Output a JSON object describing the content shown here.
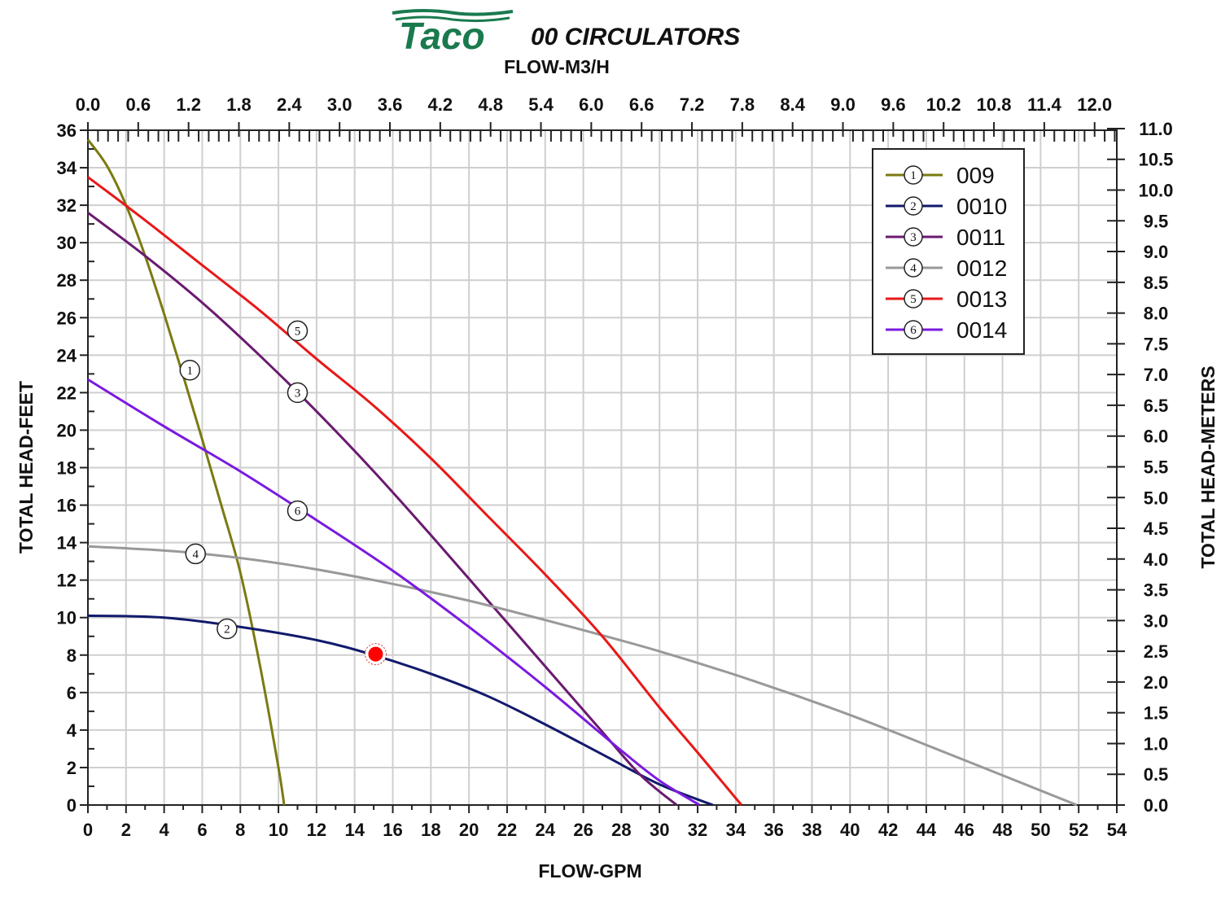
{
  "chart_data": {
    "type": "line",
    "title": "00 CIRCULATORS",
    "logo_text": "Taco",
    "xlabel": "FLOW-GPM",
    "x2label": "FLOW-M3/H",
    "ylabel": "TOTAL HEAD-FEET",
    "y2label": "TOTAL HEAD-METERS",
    "xlim": [
      0,
      54
    ],
    "ylim": [
      0,
      36
    ],
    "x2lim_m3h": [
      0,
      12.26
    ],
    "y2lim_m": [
      0,
      11
    ],
    "grid": true,
    "legend_position": "top-right",
    "x_ticks": [
      "0",
      "2",
      "4",
      "6",
      "8",
      "10",
      "12",
      "14",
      "16",
      "18",
      "20",
      "22",
      "24",
      "26",
      "28",
      "30",
      "32",
      "34",
      "36",
      "38",
      "40",
      "42",
      "44",
      "46",
      "48",
      "50",
      "52",
      "54"
    ],
    "y_ticks": [
      "0",
      "2",
      "4",
      "6",
      "8",
      "10",
      "12",
      "14",
      "16",
      "18",
      "20",
      "22",
      "24",
      "26",
      "28",
      "30",
      "32",
      "34",
      "36"
    ],
    "x2_ticks": [
      "0.0",
      "0.6",
      "1.2",
      "1.8",
      "2.4",
      "3.0",
      "3.6",
      "4.2",
      "4.8",
      "5.4",
      "6.0",
      "6.6",
      "7.2",
      "7.8",
      "8.4",
      "9.0",
      "9.6",
      "10.2",
      "10.8",
      "11.4",
      "12.0"
    ],
    "y2_ticks": [
      "0.0",
      "0.5",
      "1.0",
      "1.5",
      "2.0",
      "2.5",
      "3.0",
      "3.5",
      "4.0",
      "4.5",
      "5.0",
      "5.5",
      "6.0",
      "6.5",
      "7.0",
      "7.5",
      "8.0",
      "8.5",
      "9.0",
      "9.5",
      "10.0",
      "10.5",
      "11.0"
    ],
    "series": [
      {
        "id": "1",
        "name": "009",
        "color": "#7a7a12",
        "label_at": [
          5.35,
          23.2
        ],
        "x": [
          0,
          1,
          2,
          3,
          4,
          5,
          6,
          7,
          8,
          9,
          10,
          10.3
        ],
        "y": [
          35.5,
          34.1,
          32.0,
          29.3,
          26.2,
          22.9,
          19.5,
          16.0,
          12.4,
          7.6,
          2.0,
          0
        ]
      },
      {
        "id": "2",
        "name": "0010",
        "color": "#111a6b",
        "label_at": [
          7.3,
          9.4
        ],
        "x": [
          0,
          4,
          8,
          12,
          15,
          18,
          21,
          24,
          27,
          30,
          32.8
        ],
        "y": [
          10.1,
          10.0,
          9.5,
          8.8,
          8.0,
          7.0,
          5.8,
          4.3,
          2.7,
          1.1,
          0
        ]
      },
      {
        "id": "3",
        "name": "0011",
        "color": "#6a1a70",
        "label_at": [
          11,
          22
        ],
        "x": [
          0,
          3,
          6,
          9,
          12,
          15,
          18,
          21,
          24,
          27,
          29,
          30.9
        ],
        "y": [
          31.6,
          29.3,
          26.8,
          24.0,
          21.0,
          17.8,
          14.4,
          10.9,
          7.4,
          3.9,
          1.6,
          0
        ]
      },
      {
        "id": "4",
        "name": "0012",
        "color": "#999999",
        "label_at": [
          5.65,
          13.4
        ],
        "x": [
          0,
          5,
          10,
          15,
          20,
          25,
          30,
          35,
          40,
          45,
          51.9
        ],
        "y": [
          13.8,
          13.5,
          12.9,
          12.0,
          10.9,
          9.6,
          8.2,
          6.6,
          4.8,
          2.8,
          0
        ]
      },
      {
        "id": "5",
        "name": "0013",
        "color": "#e81818",
        "label_at": [
          11,
          25.3
        ],
        "x": [
          0,
          3,
          6,
          9,
          12,
          15,
          18,
          21,
          24,
          27,
          30,
          32,
          34.3
        ],
        "y": [
          33.5,
          31.2,
          28.8,
          26.4,
          23.8,
          21.3,
          18.5,
          15.4,
          12.3,
          9.0,
          5.2,
          2.8,
          0
        ]
      },
      {
        "id": "6",
        "name": "0014",
        "color": "#7a1ae0",
        "label_at": [
          11,
          15.7
        ],
        "x": [
          0,
          4,
          8,
          12,
          16,
          20,
          24,
          28,
          30,
          32.1
        ],
        "y": [
          22.7,
          20.2,
          17.8,
          15.2,
          12.5,
          9.5,
          6.3,
          2.9,
          1.3,
          0
        ]
      }
    ],
    "operating_point": {
      "x": 15.1,
      "y": 8.05,
      "color": "#ff0000"
    }
  }
}
